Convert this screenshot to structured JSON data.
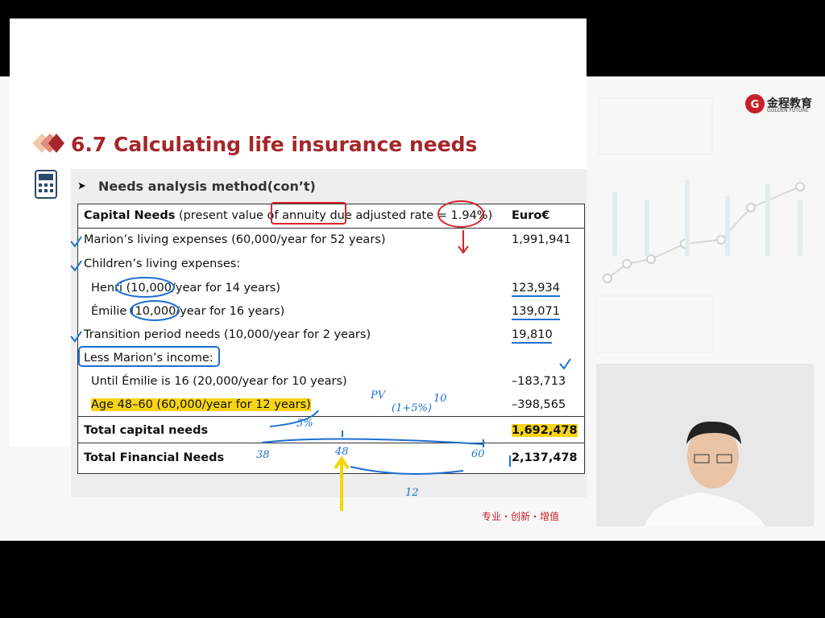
{
  "logo": {
    "name": "金程教育",
    "tagline": "GOLDEN FUTURE"
  },
  "slide": {
    "title": "6.7 Calculating life insurance needs",
    "subtitle": "Needs analysis method(con’t)",
    "table": {
      "header": {
        "label_bold": "Capital Needs",
        "label_rest": "(present value of annuity due adjusted rate = 1.94%)",
        "unit": "Euro€"
      },
      "rows": [
        {
          "label": "Marion’s living expenses (60,000/year for 52 years)",
          "value": "1,991,941"
        },
        {
          "label": "Children’s living expenses:"
        },
        {
          "label": "Henri (10,000/year for 14 years)",
          "value": "123,934"
        },
        {
          "label": "Émilie (10,000/year for 16 years)",
          "value": "139,071"
        },
        {
          "label": "Transition period needs (10,000/year for 2 years)",
          "value": "19,810"
        },
        {
          "label": "Less Marion’s income:"
        },
        {
          "label": "Until Émilie is 16 (20,000/year for 10 years)",
          "value": "–183,713"
        },
        {
          "label": "Age 48–60 (60,000/year for 12 years)",
          "value": "–398,565"
        },
        {
          "label": "Total capital needs",
          "value": "1,692,478"
        },
        {
          "label": "Total Financial Needs",
          "value": "2,137,478"
        }
      ]
    },
    "footer": "专业・创新・增值"
  },
  "annotations": [
    "5%",
    "38",
    "48",
    "60",
    "12",
    "PV",
    "(1+5%)",
    "10"
  ]
}
